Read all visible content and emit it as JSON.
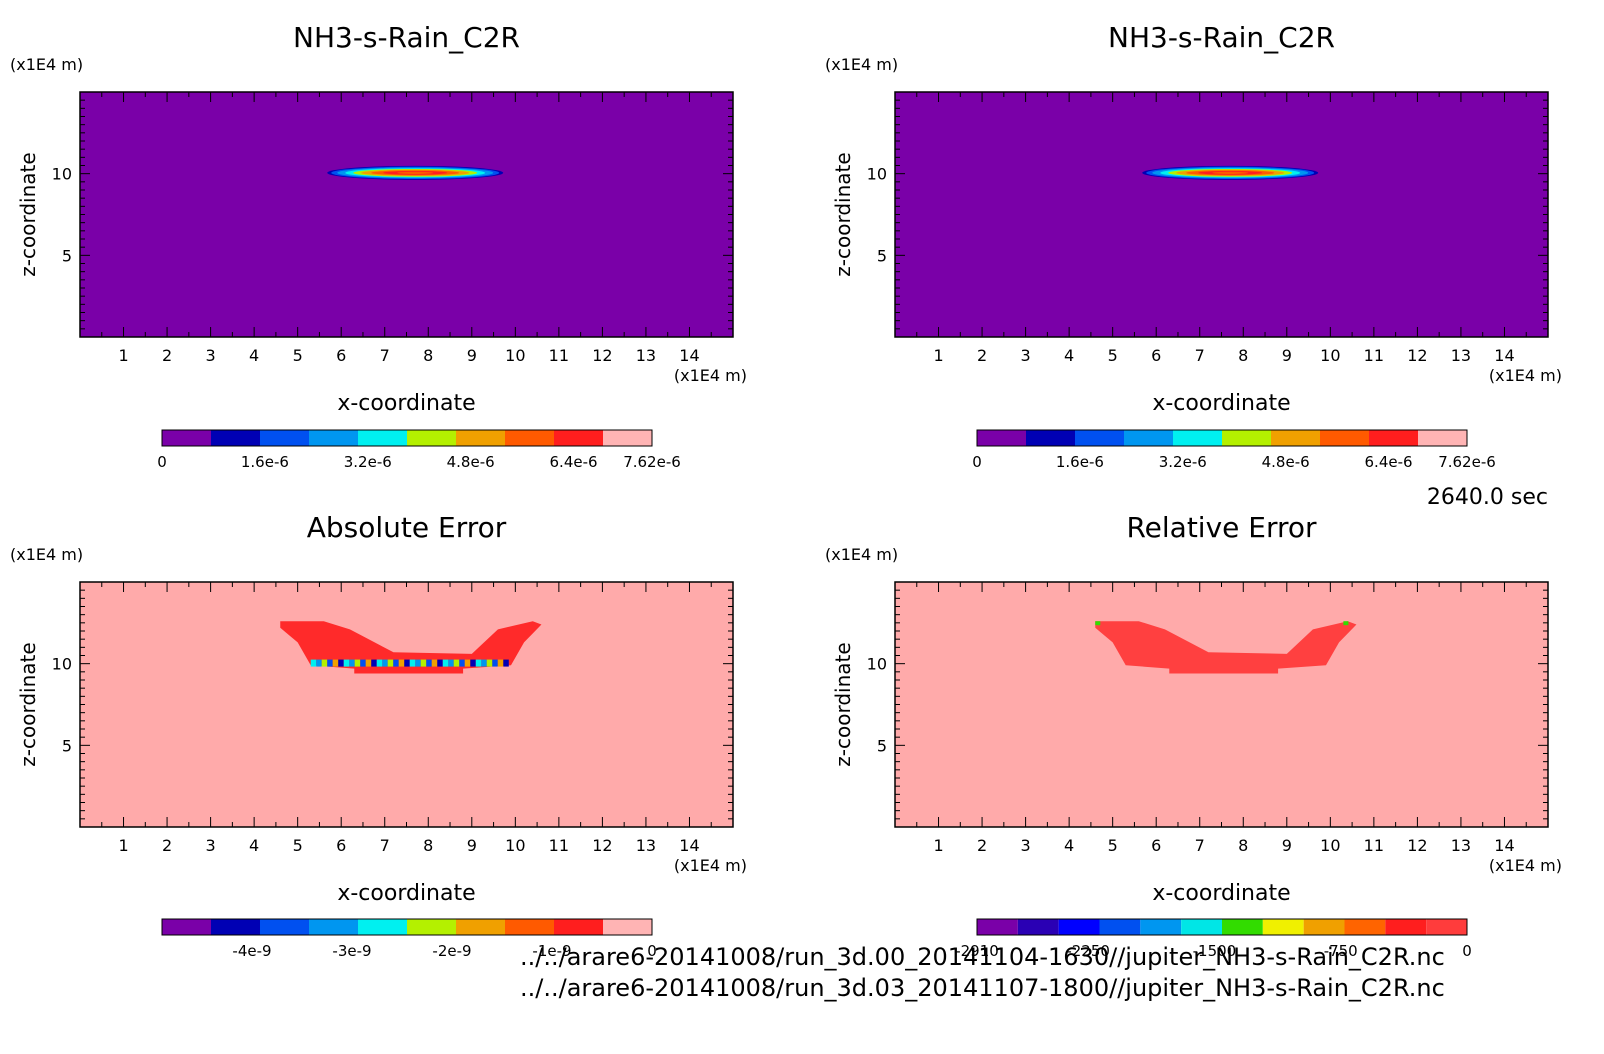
{
  "time_label": "2640.0 sec",
  "file_paths": [
    "../../arare6-20141008/run_3d.00_20141104-1630//jupiter_NH3-s-Rain_C2R.nc",
    "../../arare6-20141008/run_3d.03_20141107-1800//jupiter_NH3-s-Rain_C2R.nc"
  ],
  "chart_data": [
    {
      "type": "heatmap",
      "title": "NH3-s-Rain_C2R",
      "xlabel": "x-coordinate",
      "ylabel": "z-coordinate",
      "x_unit": "(x1E4 m)",
      "y_unit": "(x1E4 m)",
      "xlim": [
        0,
        15
      ],
      "ylim": [
        0,
        15
      ],
      "x_ticks": [
        "1",
        "2",
        "3",
        "4",
        "5",
        "6",
        "7",
        "8",
        "9",
        "10",
        "11",
        "12",
        "13",
        "14"
      ],
      "y_ticks": [
        "5",
        "10"
      ],
      "colorbar": {
        "colors": [
          "#7a00a8",
          "#0000b4",
          "#0050f0",
          "#0096f0",
          "#00f0f0",
          "#b4f000",
          "#f0a000",
          "#ff5a00",
          "#ff1e1e",
          "#ffb4b4"
        ],
        "labels": [
          "0",
          "1.6e-6",
          "3.2e-6",
          "4.8e-6",
          "6.4e-6",
          "7.62e-6"
        ],
        "label_values": [
          0,
          1.6e-06,
          3.2e-06,
          4.8e-06,
          6.4e-06,
          7.62e-06
        ],
        "min": 0,
        "max": 7.62e-06
      },
      "background_color": "#7a00a8"
    },
    {
      "type": "heatmap",
      "title": "NH3-s-Rain_C2R",
      "xlabel": "x-coordinate",
      "ylabel": "z-coordinate",
      "x_unit": "(x1E4 m)",
      "y_unit": "(x1E4 m)",
      "xlim": [
        0,
        15
      ],
      "ylim": [
        0,
        15
      ],
      "x_ticks": [
        "1",
        "2",
        "3",
        "4",
        "5",
        "6",
        "7",
        "8",
        "9",
        "10",
        "11",
        "12",
        "13",
        "14"
      ],
      "y_ticks": [
        "5",
        "10"
      ],
      "colorbar": {
        "colors": [
          "#7a00a8",
          "#0000b4",
          "#0050f0",
          "#0096f0",
          "#00f0f0",
          "#b4f000",
          "#f0a000",
          "#ff5a00",
          "#ff1e1e",
          "#ffb4b4"
        ],
        "labels": [
          "0",
          "1.6e-6",
          "3.2e-6",
          "4.8e-6",
          "6.4e-6",
          "7.62e-6"
        ],
        "label_values": [
          0,
          1.6e-06,
          3.2e-06,
          4.8e-06,
          6.4e-06,
          7.62e-06
        ],
        "min": 0,
        "max": 7.62e-06
      },
      "background_color": "#7a00a8"
    },
    {
      "type": "heatmap",
      "title": "Absolute Error",
      "xlabel": "x-coordinate",
      "ylabel": "z-coordinate",
      "x_unit": "(x1E4 m)",
      "y_unit": "(x1E4 m)",
      "xlim": [
        0,
        15
      ],
      "ylim": [
        0,
        15
      ],
      "x_ticks": [
        "1",
        "2",
        "3",
        "4",
        "5",
        "6",
        "7",
        "8",
        "9",
        "10",
        "11",
        "12",
        "13",
        "14"
      ],
      "y_ticks": [
        "5",
        "10"
      ],
      "colorbar": {
        "colors": [
          "#7a00a8",
          "#0000b4",
          "#0050f0",
          "#0096f0",
          "#00f0f0",
          "#b4f000",
          "#f0a000",
          "#ff5a00",
          "#ff1e1e",
          "#ffb4b4"
        ],
        "labels": [
          "-4e-9",
          "-3e-9",
          "-2e-9",
          "-1e-9",
          "0"
        ],
        "label_values": [
          -4e-09,
          -3e-09,
          -2e-09,
          -1e-09,
          0
        ],
        "min": -4.9e-09,
        "max": 0
      },
      "background_color": "#ffaaaa"
    },
    {
      "type": "heatmap",
      "title": "Relative Error",
      "xlabel": "x-coordinate",
      "ylabel": "z-coordinate",
      "x_unit": "(x1E4 m)",
      "y_unit": "(x1E4 m)",
      "xlim": [
        0,
        15
      ],
      "ylim": [
        0,
        15
      ],
      "x_ticks": [
        "1",
        "2",
        "3",
        "4",
        "5",
        "6",
        "7",
        "8",
        "9",
        "10",
        "11",
        "12",
        "13",
        "14"
      ],
      "y_ticks": [
        "5",
        "10"
      ],
      "colorbar": {
        "colors": [
          "#7a00a8",
          "#2a00b4",
          "#0000ff",
          "#0050f0",
          "#0096f0",
          "#00e6e6",
          "#32dc00",
          "#f0f000",
          "#f0a000",
          "#ff6400",
          "#ff1e1e",
          "#ff3c3c"
        ],
        "labels": [
          "-2910",
          "-2250",
          "-1500",
          "-750",
          "0"
        ],
        "label_values": [
          -2910,
          -2250,
          -1500,
          -750,
          0
        ],
        "min": -2910,
        "max": 0
      },
      "background_color": "#ffaaaa"
    }
  ]
}
